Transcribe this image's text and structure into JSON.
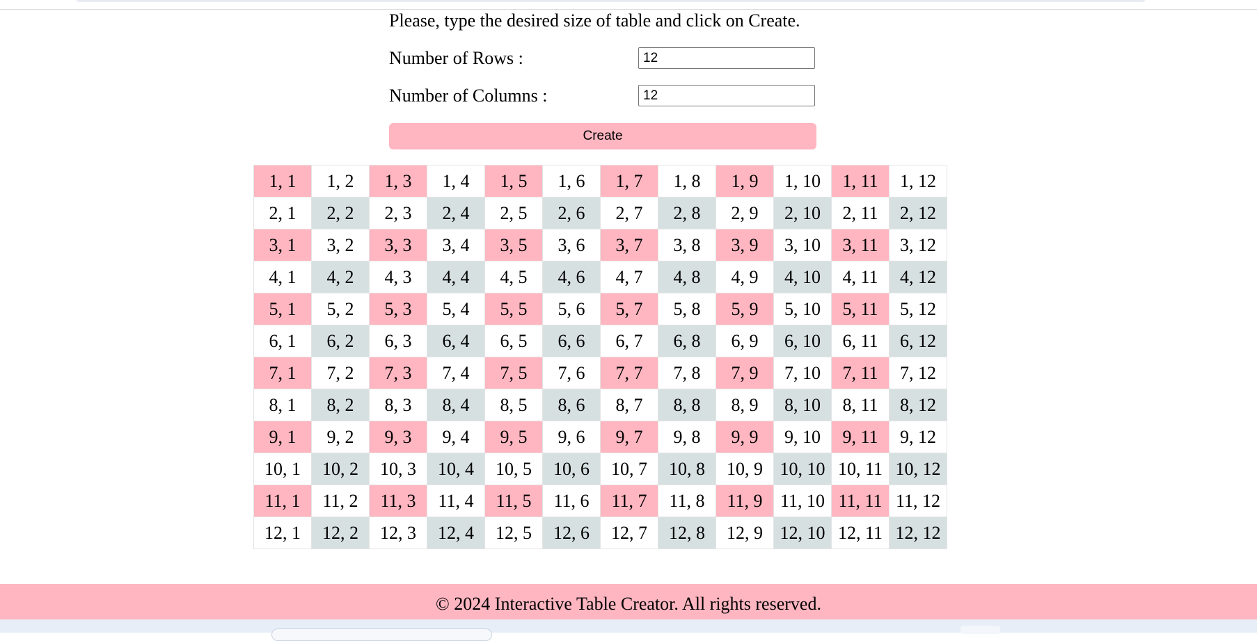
{
  "form": {
    "instructions": "Please, type the desired size of table and click on Create.",
    "rows_label": "Number of Rows :",
    "rows_value": "12",
    "columns_label": "Number of Columns :",
    "columns_value": "12",
    "create_label": "Create"
  },
  "table": {
    "rows": [
      [
        "1, 1",
        "1, 2",
        "1, 3",
        "1, 4",
        "1, 5",
        "1, 6",
        "1, 7",
        "1, 8",
        "1, 9",
        "1, 10",
        "1, 11",
        "1, 12"
      ],
      [
        "2, 1",
        "2, 2",
        "2, 3",
        "2, 4",
        "2, 5",
        "2, 6",
        "2, 7",
        "2, 8",
        "2, 9",
        "2, 10",
        "2, 11",
        "2, 12"
      ],
      [
        "3, 1",
        "3, 2",
        "3, 3",
        "3, 4",
        "3, 5",
        "3, 6",
        "3, 7",
        "3, 8",
        "3, 9",
        "3, 10",
        "3, 11",
        "3, 12"
      ],
      [
        "4, 1",
        "4, 2",
        "4, 3",
        "4, 4",
        "4, 5",
        "4, 6",
        "4, 7",
        "4, 8",
        "4, 9",
        "4, 10",
        "4, 11",
        "4, 12"
      ],
      [
        "5, 1",
        "5, 2",
        "5, 3",
        "5, 4",
        "5, 5",
        "5, 6",
        "5, 7",
        "5, 8",
        "5, 9",
        "5, 10",
        "5, 11",
        "5, 12"
      ],
      [
        "6, 1",
        "6, 2",
        "6, 3",
        "6, 4",
        "6, 5",
        "6, 6",
        "6, 7",
        "6, 8",
        "6, 9",
        "6, 10",
        "6, 11",
        "6, 12"
      ],
      [
        "7, 1",
        "7, 2",
        "7, 3",
        "7, 4",
        "7, 5",
        "7, 6",
        "7, 7",
        "7, 8",
        "7, 9",
        "7, 10",
        "7, 11",
        "7, 12"
      ],
      [
        "8, 1",
        "8, 2",
        "8, 3",
        "8, 4",
        "8, 5",
        "8, 6",
        "8, 7",
        "8, 8",
        "8, 9",
        "8, 10",
        "8, 11",
        "8, 12"
      ],
      [
        "9, 1",
        "9, 2",
        "9, 3",
        "9, 4",
        "9, 5",
        "9, 6",
        "9, 7",
        "9, 8",
        "9, 9",
        "9, 10",
        "9, 11",
        "9, 12"
      ],
      [
        "10, 1",
        "10, 2",
        "10, 3",
        "10, 4",
        "10, 5",
        "10, 6",
        "10, 7",
        "10, 8",
        "10, 9",
        "10, 10",
        "10, 11",
        "10, 12"
      ],
      [
        "11, 1",
        "11, 2",
        "11, 3",
        "11, 4",
        "11, 5",
        "11, 6",
        "11, 7",
        "11, 8",
        "11, 9",
        "11, 10",
        "11, 11",
        "11, 12"
      ],
      [
        "12, 1",
        "12, 2",
        "12, 3",
        "12, 4",
        "12, 5",
        "12, 6",
        "12, 7",
        "12, 8",
        "12, 9",
        "12, 10",
        "12, 11",
        "12, 12"
      ]
    ]
  },
  "colors": {
    "accent_pink": "#ffb6c1",
    "alt_grey": "#d7e0e1",
    "cell_white": "#ffffff"
  },
  "footer": {
    "text": "© 2024 Interactive Table Creator. All rights reserved."
  }
}
